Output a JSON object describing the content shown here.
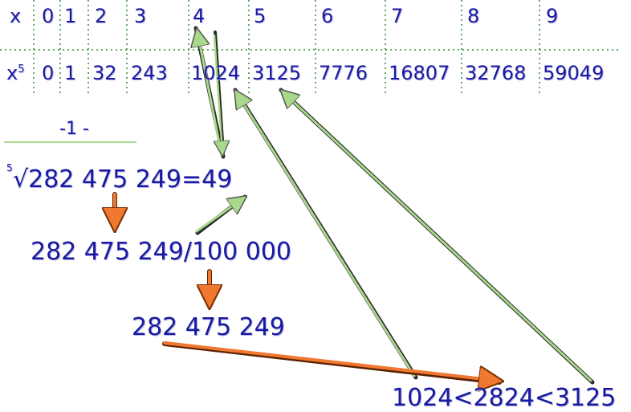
{
  "table": {
    "row1_label": "x",
    "row1": [
      "0",
      "1",
      "2",
      "3",
      "4",
      "5",
      "6",
      "7",
      "8",
      "9"
    ],
    "row2_label": "x",
    "row2_exp": "5",
    "row2": [
      "0",
      "1",
      "32",
      "243",
      "1024",
      "3125",
      "7776",
      "16807",
      "32768",
      "59049"
    ]
  },
  "marker": "-1 -",
  "root_index": "5",
  "root_expr": "√282 475 249=49",
  "division_expr": "282 475 249/100 000",
  "truncated_expr": "282 475 249",
  "comparison": "1024<2824<3125"
}
